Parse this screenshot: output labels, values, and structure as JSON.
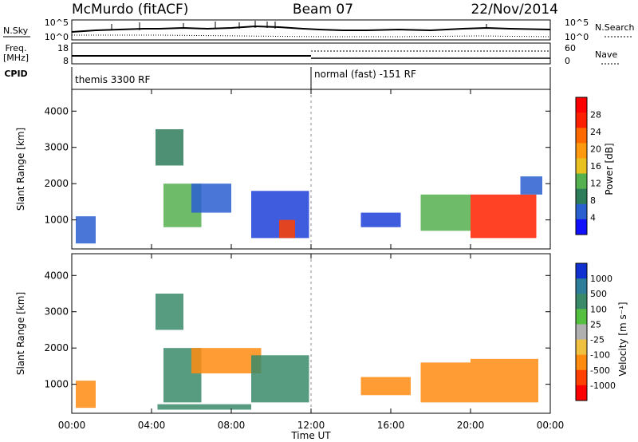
{
  "header": {
    "station": "McMurdo (fitACF)",
    "beam": "Beam 07",
    "date": "22/Nov/2014"
  },
  "top_panels": {
    "nsky_label": "N.Sky",
    "nsearch_label": "N.Search",
    "freq_label_1": "Freq.",
    "freq_label_2": "[MHz]",
    "nave_label": "Nave",
    "cpid_label": "CPID",
    "cpid_left": "themis 3300 RF",
    "cpid_right": "normal (fast) -151 RF",
    "ticks": {
      "nsky_top": "10^5",
      "nsky_bot": "10^0",
      "nsearch_top": "10^5",
      "nsearch_bot": "10^0",
      "freq_top": "18",
      "freq_bot": "8",
      "nave_top": "60",
      "nave_bot": "0"
    }
  },
  "chart_data": [
    {
      "type": "heatmap",
      "name": "power",
      "ylabel": "Slant Range [km]",
      "y_ticks": [
        "1000",
        "2000",
        "3000",
        "4000"
      ],
      "ylim": [
        200,
        4600
      ],
      "colorbar_label": "Power [dB]",
      "colorbar_ticks": [
        "4",
        "8",
        "12",
        "16",
        "20",
        "24",
        "28"
      ],
      "colorbar_colors": [
        "#1010ff",
        "#2a5fd0",
        "#2e7d5a",
        "#55b050",
        "#e8c020",
        "#ff9a10",
        "#ff6a00",
        "#ff2000",
        "#ff0000"
      ],
      "patches": [
        {
          "t0": 0.2,
          "t1": 1.2,
          "r0": 350,
          "r1": 1100,
          "color": "#2a5fd0"
        },
        {
          "t0": 4.2,
          "t1": 5.6,
          "r0": 2500,
          "r1": 3500,
          "color": "#2e7d5a"
        },
        {
          "t0": 4.6,
          "t1": 6.5,
          "r0": 800,
          "r1": 2000,
          "color": "#55b050"
        },
        {
          "t0": 6.0,
          "t1": 8.0,
          "r0": 1200,
          "r1": 2000,
          "color": "#2a5fd0"
        },
        {
          "t0": 9.0,
          "t1": 11.9,
          "r0": 500,
          "r1": 1800,
          "color": "#1f3fd8"
        },
        {
          "t0": 10.4,
          "t1": 11.2,
          "r0": 500,
          "r1": 1000,
          "color": "#ff4000"
        },
        {
          "t0": 14.5,
          "t1": 16.5,
          "r0": 800,
          "r1": 1200,
          "color": "#1f3fd8"
        },
        {
          "t0": 17.5,
          "t1": 20.0,
          "r0": 700,
          "r1": 1700,
          "color": "#55b050"
        },
        {
          "t0": 20.0,
          "t1": 23.3,
          "r0": 500,
          "r1": 1700,
          "color": "#ff2000"
        },
        {
          "t0": 22.5,
          "t1": 23.6,
          "r0": 1700,
          "r1": 2200,
          "color": "#2a5fd0"
        }
      ]
    },
    {
      "type": "heatmap",
      "name": "velocity",
      "ylabel": "Slant Range [km]",
      "xlabel": "Time UT",
      "x_ticks": [
        "00:00",
        "04:00",
        "08:00",
        "12:00",
        "16:00",
        "20:00",
        "00:00"
      ],
      "y_ticks": [
        "1000",
        "2000",
        "3000",
        "4000"
      ],
      "ylim": [
        200,
        4600
      ],
      "colorbar_label": "Velocity [m s⁻¹]",
      "colorbar_ticks": [
        "1000",
        "500",
        "100",
        "25",
        "-25",
        "-100",
        "-500",
        "-1000"
      ],
      "colorbar_colors": [
        "#1030d0",
        "#2e7d9a",
        "#3a8a6a",
        "#55c040",
        "#b0b0b0",
        "#f0c040",
        "#ff8c10",
        "#ff4000",
        "#ff0000"
      ],
      "patches": [
        {
          "t0": 0.2,
          "t1": 1.2,
          "r0": 350,
          "r1": 1100,
          "color": "#ff8c10"
        },
        {
          "t0": 4.2,
          "t1": 5.6,
          "r0": 2500,
          "r1": 3500,
          "color": "#3a8a6a"
        },
        {
          "t0": 4.6,
          "t1": 6.5,
          "r0": 500,
          "r1": 2000,
          "color": "#3a8a6a"
        },
        {
          "t0": 6.0,
          "t1": 9.5,
          "r0": 1300,
          "r1": 2000,
          "color": "#ff8c10"
        },
        {
          "t0": 9.0,
          "t1": 11.9,
          "r0": 500,
          "r1": 1800,
          "color": "#3a8a6a"
        },
        {
          "t0": 14.5,
          "t1": 17.0,
          "r0": 700,
          "r1": 1200,
          "color": "#ff8c10"
        },
        {
          "t0": 17.5,
          "t1": 20.0,
          "r0": 500,
          "r1": 1600,
          "color": "#ff8c10"
        },
        {
          "t0": 20.0,
          "t1": 23.4,
          "r0": 500,
          "r1": 1700,
          "color": "#ff8c10"
        },
        {
          "t0": 4.3,
          "t1": 9.0,
          "r0": 300,
          "r1": 450,
          "color": "#3a8a6a"
        }
      ]
    }
  ]
}
